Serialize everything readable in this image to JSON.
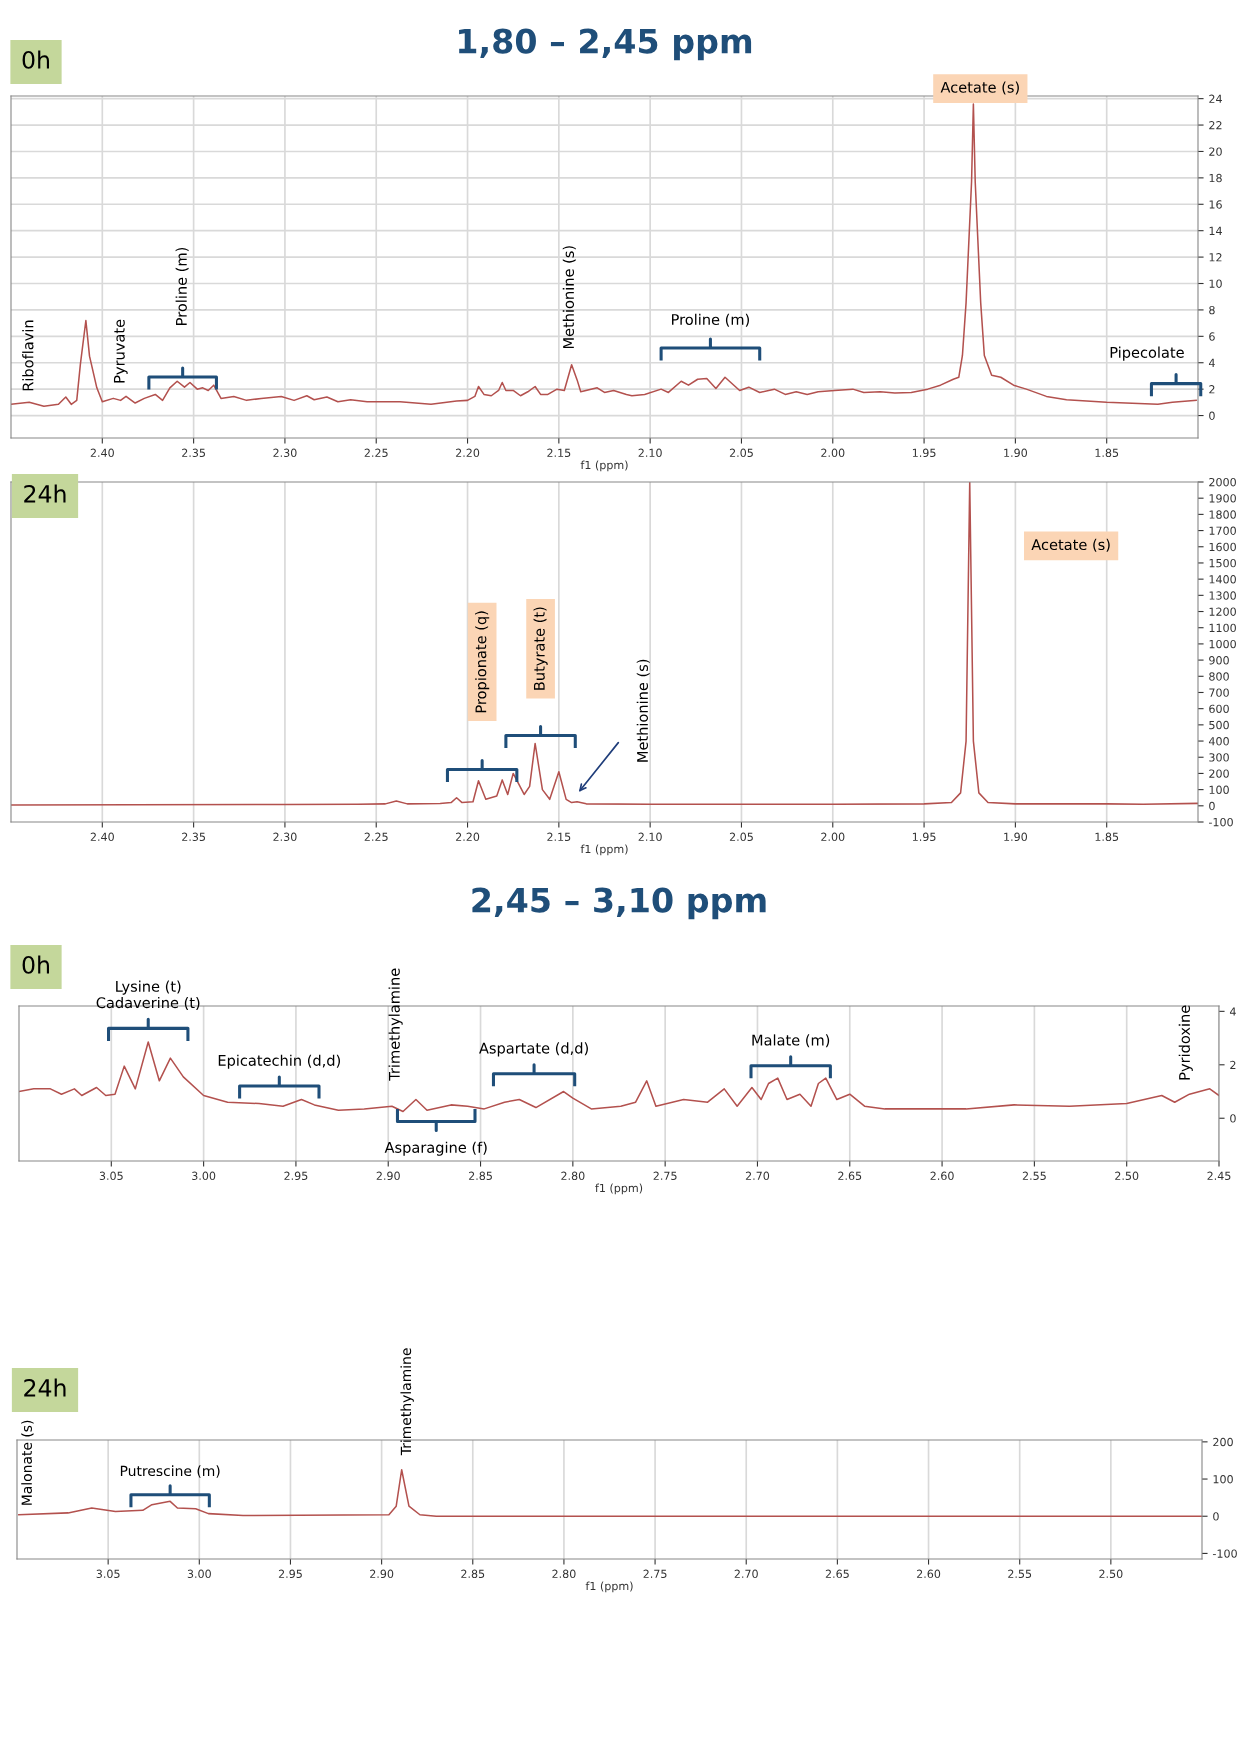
{
  "chart_data": [
    {
      "type": "line",
      "title": "1,80 – 2,45 ppm",
      "subtitle": "0h",
      "xlabel": "f1 (ppm)",
      "xlim": [
        2.45,
        1.8
      ],
      "ylim": [
        -1.7,
        24.2
      ],
      "grid": true,
      "legend": false,
      "marker": "none",
      "xticks": [
        {
          "value": 2.4,
          "label": "2.40"
        },
        {
          "value": 2.35,
          "label": "2.35"
        },
        {
          "value": 2.3,
          "label": "2.30"
        },
        {
          "value": 2.25,
          "label": "2.25"
        },
        {
          "value": 2.2,
          "label": "2.20"
        },
        {
          "value": 2.15,
          "label": "2.15"
        },
        {
          "value": 2.1,
          "label": "2.10"
        },
        {
          "value": 2.05,
          "label": "2.05"
        },
        {
          "value": 2.0,
          "label": "2.00"
        },
        {
          "value": 1.95,
          "label": "1.95"
        },
        {
          "value": 1.9,
          "label": "1.90"
        },
        {
          "value": 1.85,
          "label": "1.85"
        }
      ],
      "yticks": [
        0,
        2,
        4,
        6,
        8,
        10,
        12,
        14,
        16,
        18,
        20,
        22,
        24
      ],
      "series": [
        {
          "color": "#b3514e",
          "x": [
            2.45,
            2.44,
            2.432,
            2.424,
            2.42,
            2.417,
            2.414,
            2.412,
            2.409,
            2.407,
            2.403,
            2.4,
            2.394,
            2.39,
            2.387,
            2.382,
            2.377,
            2.371,
            2.367,
            2.363,
            2.359,
            2.355,
            2.352,
            2.348,
            2.345,
            2.342,
            2.339,
            2.335,
            2.328,
            2.321,
            2.313,
            2.302,
            2.295,
            2.288,
            2.284,
            2.277,
            2.271,
            2.264,
            2.255,
            2.237,
            2.22,
            2.206,
            2.2,
            2.196,
            2.194,
            2.191,
            2.187,
            2.183,
            2.181,
            2.179,
            2.175,
            2.171,
            2.167,
            2.163,
            2.16,
            2.156,
            2.151,
            2.147,
            2.143,
            2.14,
            2.138,
            2.129,
            2.125,
            2.12,
            2.113,
            2.11,
            2.103,
            2.094,
            2.09,
            2.083,
            2.079,
            2.074,
            2.069,
            2.064,
            2.059,
            2.051,
            2.046,
            2.04,
            2.032,
            2.026,
            2.02,
            2.014,
            2.008,
            1.999,
            1.989,
            1.983,
            1.974,
            1.966,
            1.957,
            1.948,
            1.941,
            1.934,
            1.931,
            1.929,
            1.927,
            1.924,
            1.923,
            1.922,
            1.919,
            1.917,
            1.913,
            1.908,
            1.901,
            1.894,
            1.883,
            1.872,
            1.85,
            1.822,
            1.814,
            1.801
          ],
          "values": [
            0.85,
            1.0,
            0.7,
            0.85,
            1.4,
            0.85,
            1.15,
            3.9,
            7.2,
            4.5,
            2.1,
            1.05,
            1.3,
            1.15,
            1.45,
            0.95,
            1.3,
            1.6,
            1.15,
            2.1,
            2.6,
            2.15,
            2.5,
            2.0,
            2.1,
            1.9,
            2.3,
            1.3,
            1.45,
            1.15,
            1.3,
            1.45,
            1.15,
            1.5,
            1.2,
            1.4,
            1.05,
            1.2,
            1.05,
            1.05,
            0.85,
            1.1,
            1.15,
            1.45,
            2.2,
            1.6,
            1.5,
            1.9,
            2.5,
            1.9,
            1.9,
            1.5,
            1.8,
            2.2,
            1.6,
            1.6,
            2.0,
            1.9,
            3.85,
            2.7,
            1.8,
            2.1,
            1.75,
            1.9,
            1.6,
            1.5,
            1.6,
            2.0,
            1.75,
            2.6,
            2.3,
            2.75,
            2.8,
            2.05,
            2.9,
            1.9,
            2.15,
            1.75,
            2.0,
            1.6,
            1.8,
            1.6,
            1.8,
            1.9,
            2.0,
            1.75,
            1.8,
            1.7,
            1.75,
            2.0,
            2.3,
            2.75,
            2.9,
            4.55,
            8.55,
            17.7,
            23.6,
            17.7,
            8.55,
            4.55,
            3.05,
            2.9,
            2.3,
            2.0,
            1.45,
            1.2,
            1.0,
            0.85,
            1.0,
            1.15
          ]
        }
      ],
      "annotations": [
        "Riboflavin",
        "Pyruvate",
        "Proline (m)",
        "Methionine (s)",
        "Proline (m)",
        "Acetate (s)",
        "Pipecolate"
      ]
    },
    {
      "type": "line",
      "subtitle": "24h",
      "xlabel": "f1 (ppm)",
      "xlim": [
        2.45,
        1.8
      ],
      "ylim": [
        -100,
        2000
      ],
      "grid": "x",
      "legend": false,
      "marker": "none",
      "xticks": [
        {
          "value": 2.4,
          "label": "2.40"
        },
        {
          "value": 2.35,
          "label": "2.35"
        },
        {
          "value": 2.3,
          "label": "2.30"
        },
        {
          "value": 2.25,
          "label": "2.25"
        },
        {
          "value": 2.2,
          "label": "2.20"
        },
        {
          "value": 2.15,
          "label": "2.15"
        },
        {
          "value": 2.1,
          "label": "2.10"
        },
        {
          "value": 2.05,
          "label": "2.05"
        },
        {
          "value": 2.0,
          "label": "2.00"
        },
        {
          "value": 1.95,
          "label": "1.95"
        },
        {
          "value": 1.9,
          "label": "1.90"
        },
        {
          "value": 1.85,
          "label": "1.85"
        }
      ],
      "yticks": [
        -100,
        0,
        100,
        200,
        300,
        400,
        500,
        600,
        700,
        800,
        900,
        1000,
        1100,
        1200,
        1300,
        1400,
        1500,
        1600,
        1700,
        1800,
        1900,
        2000
      ],
      "series": [
        {
          "color": "#b3514e",
          "x": [
            2.45,
            2.3,
            2.26,
            2.245,
            2.239,
            2.233,
            2.215,
            2.209,
            2.206,
            2.203,
            2.197,
            2.194,
            2.19,
            2.184,
            2.181,
            2.178,
            2.175,
            2.169,
            2.166,
            2.163,
            2.159,
            2.155,
            2.15,
            2.146,
            2.143,
            2.14,
            2.135,
            2.1,
            2.0,
            1.95,
            1.935,
            1.93,
            1.927,
            1.925,
            1.923,
            1.92,
            1.915,
            1.9,
            1.85,
            1.83,
            1.8
          ],
          "values": [
            5,
            8,
            10,
            12,
            30,
            12,
            14,
            20,
            50,
            20,
            25,
            155,
            40,
            60,
            160,
            70,
            200,
            70,
            120,
            385,
            100,
            40,
            210,
            40,
            20,
            25,
            12,
            10,
            10,
            12,
            20,
            80,
            400,
            2000,
            400,
            80,
            20,
            12,
            12,
            10,
            15
          ]
        }
      ],
      "annotations": [
        "Acetate (s)",
        "Propionate (q)",
        "Butyrate (t)",
        "Methionine (s)"
      ]
    },
    {
      "type": "line",
      "title": "2,45 – 3,10 ppm",
      "subtitle": "0h",
      "xlabel": "f1 (ppm)",
      "xlim": [
        3.1,
        2.45
      ],
      "ylim": [
        -1.6,
        4.2
      ],
      "grid": "x",
      "legend": false,
      "marker": "none",
      "xticks": [
        {
          "value": 3.05,
          "label": "3.05"
        },
        {
          "value": 3.0,
          "label": "3.00"
        },
        {
          "value": 2.95,
          "label": "2.95"
        },
        {
          "value": 2.9,
          "label": "2.90"
        },
        {
          "value": 2.85,
          "label": "2.85"
        },
        {
          "value": 2.8,
          "label": "2.80"
        },
        {
          "value": 2.75,
          "label": "2.75"
        },
        {
          "value": 2.7,
          "label": "2.70"
        },
        {
          "value": 2.65,
          "label": "2.65"
        },
        {
          "value": 2.6,
          "label": "2.60"
        },
        {
          "value": 2.55,
          "label": "2.55"
        },
        {
          "value": 2.5,
          "label": "2.50"
        },
        {
          "value": 2.45,
          "label": "2.45"
        }
      ],
      "yticks": [
        0,
        2,
        4
      ],
      "series": [
        {
          "color": "#b3514e",
          "x": [
            3.1,
            3.092,
            3.083,
            3.077,
            3.07,
            3.066,
            3.058,
            3.053,
            3.048,
            3.043,
            3.037,
            3.03,
            3.024,
            3.018,
            3.011,
            3.0,
            2.987,
            2.97,
            2.957,
            2.947,
            2.94,
            2.927,
            2.913,
            2.898,
            2.892,
            2.885,
            2.879,
            2.866,
            2.857,
            2.848,
            2.837,
            2.829,
            2.82,
            2.805,
            2.8,
            2.79,
            2.774,
            2.766,
            2.76,
            2.755,
            2.74,
            2.727,
            2.718,
            2.711,
            2.703,
            2.698,
            2.694,
            2.689,
            2.684,
            2.677,
            2.671,
            2.667,
            2.663,
            2.657,
            2.65,
            2.642,
            2.631,
            2.587,
            2.561,
            2.531,
            2.5,
            2.481,
            2.474,
            2.466,
            2.455,
            2.45
          ],
          "values": [
            1.0,
            1.1,
            1.1,
            0.9,
            1.1,
            0.85,
            1.15,
            0.85,
            0.9,
            1.95,
            1.1,
            2.85,
            1.4,
            2.25,
            1.55,
            0.85,
            0.6,
            0.55,
            0.45,
            0.7,
            0.5,
            0.3,
            0.35,
            0.45,
            0.25,
            0.7,
            0.3,
            0.5,
            0.45,
            0.35,
            0.6,
            0.7,
            0.4,
            1.0,
            0.75,
            0.35,
            0.45,
            0.6,
            1.4,
            0.45,
            0.7,
            0.6,
            1.1,
            0.45,
            1.15,
            0.7,
            1.3,
            1.5,
            0.7,
            0.9,
            0.45,
            1.3,
            1.5,
            0.7,
            0.9,
            0.45,
            0.35,
            0.35,
            0.5,
            0.45,
            0.55,
            0.85,
            0.6,
            0.9,
            1.1,
            0.85
          ]
        }
      ],
      "annotations": [
        "Lysine (t)\nCadaverine (t)",
        "Epicatechin (d,d)",
        "Trimethylamine",
        "Asparagine (f)",
        "Aspartate (d,d)",
        "Malate (m)",
        "Pyridoxine"
      ]
    },
    {
      "type": "line",
      "subtitle": "24h",
      "xlabel": "f1 (ppm)",
      "xlim": [
        3.1,
        2.45
      ],
      "ylim": [
        -115,
        205
      ],
      "grid": "x",
      "legend": false,
      "marker": "none",
      "xticks": [
        {
          "value": 3.05,
          "label": "3.05"
        },
        {
          "value": 3.0,
          "label": "3.00"
        },
        {
          "value": 2.95,
          "label": "2.95"
        },
        {
          "value": 2.9,
          "label": "2.90"
        },
        {
          "value": 2.85,
          "label": "2.85"
        },
        {
          "value": 2.8,
          "label": "2.80"
        },
        {
          "value": 2.75,
          "label": "2.75"
        },
        {
          "value": 2.7,
          "label": "2.70"
        },
        {
          "value": 2.65,
          "label": "2.65"
        },
        {
          "value": 2.6,
          "label": "2.60"
        },
        {
          "value": 2.55,
          "label": "2.55"
        },
        {
          "value": 2.5,
          "label": "2.50"
        }
      ],
      "yticks": [
        -100,
        0,
        100,
        200
      ],
      "series": [
        {
          "color": "#b3514e",
          "x": [
            3.099,
            3.072,
            3.059,
            3.046,
            3.031,
            3.026,
            3.016,
            3.012,
            3.002,
            2.995,
            2.976,
            2.896,
            2.892,
            2.889,
            2.885,
            2.879,
            2.87,
            2.45
          ],
          "values": [
            4,
            9,
            22,
            13,
            16,
            31,
            40,
            22,
            20,
            7,
            2,
            4,
            27,
            125,
            27,
            4,
            0,
            0
          ]
        }
      ],
      "annotations": [
        "Malonate (s)",
        "Putrescine (m)",
        "Trimethylamine"
      ]
    }
  ]
}
